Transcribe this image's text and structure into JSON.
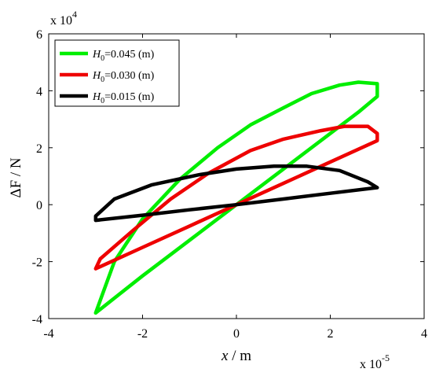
{
  "chart_data": {
    "type": "line",
    "xlabel_var": "x",
    "xlabel_unit": " / m",
    "ylabel_text": "ΔF / N",
    "x_exponent_base": "x 10",
    "x_exponent_power": "-5",
    "y_exponent_base": "x 10",
    "y_exponent_power": "4",
    "xlim": [
      -4,
      4
    ],
    "ylim": [
      -4,
      6
    ],
    "x_ticks": [
      -4,
      -2,
      0,
      2,
      4
    ],
    "y_ticks": [
      -4,
      -2,
      0,
      2,
      4,
      6
    ],
    "x_tick_labels": [
      "-4",
      "-2",
      "0",
      "2",
      "4"
    ],
    "y_tick_labels": [
      "-4",
      "-2",
      "0",
      "2",
      "4",
      "6"
    ],
    "grid": false,
    "legend_position": "top-left",
    "series": [
      {
        "name": "H0=0.045 (m)",
        "label_prefix": "H",
        "label_sub": "0",
        "label_rest": "=0.045 (m)",
        "color": "#00ee00",
        "points": [
          [
            -3.0,
            -3.8
          ],
          [
            -2.0,
            -2.5
          ],
          [
            -1.0,
            -1.25
          ],
          [
            0.0,
            0.0
          ],
          [
            1.0,
            1.25
          ],
          [
            2.0,
            2.5
          ],
          [
            2.6,
            3.25
          ],
          [
            3.0,
            3.8
          ],
          [
            3.0,
            4.25
          ],
          [
            2.6,
            4.3
          ],
          [
            2.2,
            4.2
          ],
          [
            1.6,
            3.9
          ],
          [
            1.0,
            3.4
          ],
          [
            0.3,
            2.8
          ],
          [
            -0.4,
            2.0
          ],
          [
            -1.2,
            0.9
          ],
          [
            -2.0,
            -0.5
          ],
          [
            -2.6,
            -2.0
          ],
          [
            -3.0,
            -3.8
          ]
        ]
      },
      {
        "name": "H0=0.030 (m)",
        "label_prefix": "H",
        "label_sub": "0",
        "label_rest": "=0.030 (m)",
        "color": "#ee0000",
        "points": [
          [
            -3.0,
            -2.25
          ],
          [
            -2.0,
            -1.5
          ],
          [
            -1.0,
            -0.75
          ],
          [
            0.0,
            0.0
          ],
          [
            1.0,
            0.75
          ],
          [
            2.0,
            1.5
          ],
          [
            3.0,
            2.25
          ],
          [
            3.0,
            2.5
          ],
          [
            2.8,
            2.75
          ],
          [
            2.3,
            2.75
          ],
          [
            1.8,
            2.6
          ],
          [
            1.0,
            2.3
          ],
          [
            0.3,
            1.9
          ],
          [
            -0.6,
            1.1
          ],
          [
            -1.4,
            0.2
          ],
          [
            -2.2,
            -0.9
          ],
          [
            -2.9,
            -1.9
          ],
          [
            -3.0,
            -2.25
          ]
        ]
      },
      {
        "name": "H0=0.015 (m)",
        "label_prefix": "H",
        "label_sub": "0",
        "label_rest": "=0.015 (m)",
        "color": "#000000",
        "points": [
          [
            -3.0,
            -0.55
          ],
          [
            -2.0,
            -0.37
          ],
          [
            -1.0,
            -0.18
          ],
          [
            0.0,
            0.0
          ],
          [
            1.0,
            0.2
          ],
          [
            2.0,
            0.4
          ],
          [
            3.0,
            0.6
          ],
          [
            2.8,
            0.8
          ],
          [
            2.2,
            1.2
          ],
          [
            1.5,
            1.35
          ],
          [
            0.8,
            1.35
          ],
          [
            0.0,
            1.25
          ],
          [
            -0.8,
            1.05
          ],
          [
            -1.8,
            0.7
          ],
          [
            -2.6,
            0.2
          ],
          [
            -3.0,
            -0.4
          ],
          [
            -3.0,
            -0.55
          ]
        ]
      }
    ]
  }
}
